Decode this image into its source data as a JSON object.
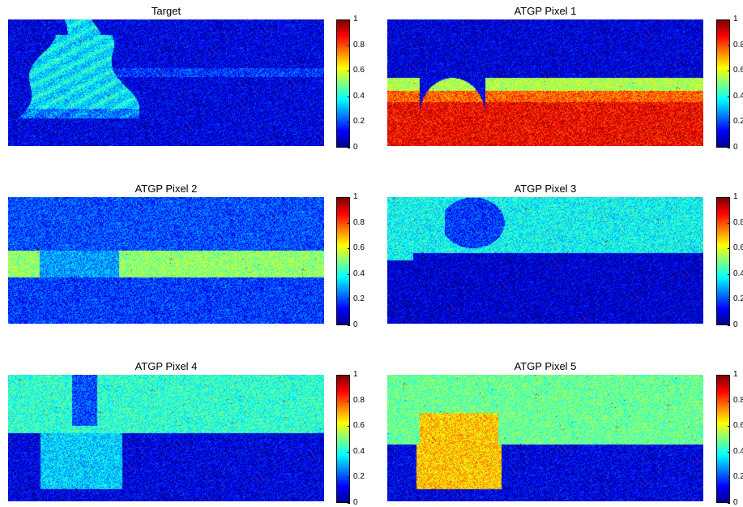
{
  "chart_data": [
    {
      "type": "heatmap",
      "title": "Target",
      "colormap": "jet",
      "clim": [
        0,
        1
      ],
      "colorbar_ticks": [
        "0",
        "0.2",
        "0.4",
        "0.6",
        "0.8",
        "1"
      ],
      "pattern": "target",
      "background_level": 0.1,
      "feature_level": 0.42
    },
    {
      "type": "heatmap",
      "title": "ATGP Pixel 1",
      "colormap": "jet",
      "clim": [
        0,
        1
      ],
      "colorbar_ticks": [
        "0",
        "0.2",
        "0.4",
        "0.6",
        "0.8",
        "1"
      ],
      "pattern": "pixel1",
      "background_level": 0.1,
      "feature_level": 0.88
    },
    {
      "type": "heatmap",
      "title": "ATGP Pixel 2",
      "colormap": "jet",
      "clim": [
        0,
        1
      ],
      "colorbar_ticks": [
        "0",
        "0.2",
        "0.4",
        "0.6",
        "0.8",
        "1"
      ],
      "pattern": "pixel2",
      "background_level": 0.2,
      "feature_level": 0.52
    },
    {
      "type": "heatmap",
      "title": "ATGP Pixel 3",
      "colormap": "jet",
      "clim": [
        0,
        1
      ],
      "colorbar_ticks": [
        "0",
        "0.2",
        "0.4",
        "0.6",
        "0.8",
        "1"
      ],
      "pattern": "pixel3",
      "background_level": 0.08,
      "feature_level": 0.38
    },
    {
      "type": "heatmap",
      "title": "ATGP Pixel 4",
      "colormap": "jet",
      "clim": [
        0,
        1
      ],
      "colorbar_ticks": [
        "0",
        "0.2",
        "0.4",
        "0.6",
        "0.8",
        "1"
      ],
      "pattern": "pixel4",
      "background_level": 0.1,
      "feature_level": 0.42
    },
    {
      "type": "heatmap",
      "title": "ATGP Pixel 5",
      "colormap": "jet",
      "clim": [
        0,
        1
      ],
      "colorbar_ticks": [
        "0",
        "0.2",
        "0.4",
        "0.6",
        "0.8",
        "1"
      ],
      "pattern": "pixel5",
      "background_level": 0.1,
      "feature_level": 0.48
    }
  ]
}
